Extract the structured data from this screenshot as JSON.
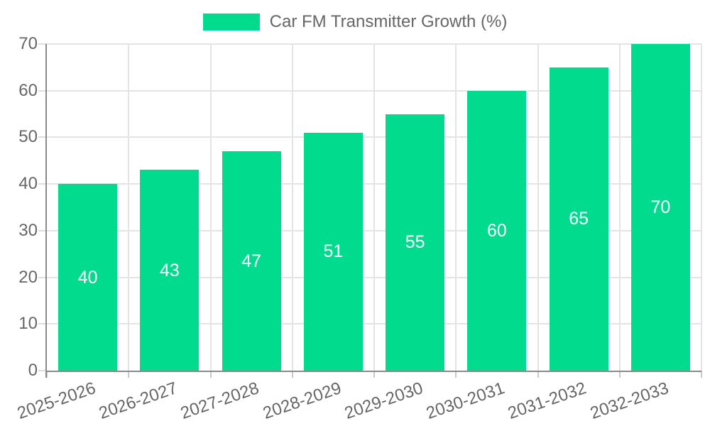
{
  "chart_data": {
    "type": "bar",
    "title": "Car FM Transmitter Growth (%)",
    "categories": [
      "2025-2026",
      "2026-2027",
      "2027-2028",
      "2028-2029",
      "2029-2030",
      "2030-2031",
      "2031-2032",
      "2032-2033"
    ],
    "values": [
      40,
      43,
      47,
      51,
      55,
      60,
      65,
      70
    ],
    "yticks": [
      0,
      10,
      20,
      30,
      40,
      50,
      60,
      70
    ],
    "ylim": [
      0,
      70
    ],
    "xlabel": "",
    "ylabel": "",
    "grid": true,
    "legend_position": "top",
    "bar_color": "#00db8e",
    "value_label_color": "#ffffff",
    "grid_color": "#e4e4e4",
    "axis_color": "#8a8a8a",
    "text_color": "#666666"
  }
}
